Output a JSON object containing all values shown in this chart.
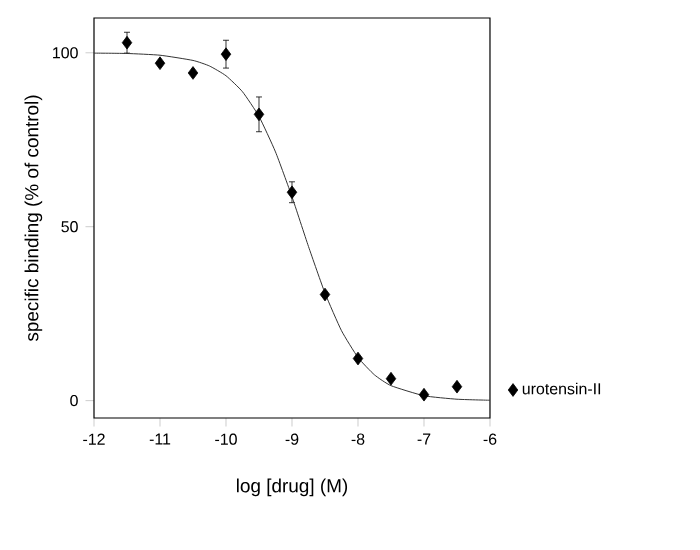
{
  "chart_data": {
    "type": "scatter",
    "xlabel": "log [drug] (M)",
    "ylabel": "specific binding (% of control)",
    "xlim": [
      -12,
      -6
    ],
    "ylim": [
      -5,
      110
    ],
    "xticks": [
      -12,
      -11,
      -10,
      -9,
      -8,
      -7,
      -6
    ],
    "yticks": [
      0,
      50,
      100
    ],
    "grid": false,
    "legend": "bottom right",
    "series": [
      {
        "name": "urotensin-II",
        "marker": "diamond",
        "color": "#000000",
        "x": [
          -11.5,
          -11,
          -10.5,
          -10,
          -9.5,
          -9,
          -8.5,
          -8,
          -7.5,
          -7,
          -6.5
        ],
        "values": [
          102.9,
          97.0,
          94.2,
          99.6,
          82.3,
          59.9,
          30.5,
          12.1,
          6.3,
          1.7,
          4.0
        ],
        "errors": [
          3,
          null,
          null,
          4,
          5,
          3,
          null,
          null,
          null,
          null,
          null
        ]
      },
      {
        "type": "line",
        "marker": "none",
        "color": "#333333",
        "x": [
          -12,
          -11.5,
          -11,
          -10.5,
          -10.25,
          -10,
          -9.75,
          -9.5,
          -9.25,
          -9,
          -8.75,
          -8.5,
          -8.25,
          -8,
          -7.75,
          -7.5,
          -7,
          -6.5,
          -6
        ],
        "values": [
          99.9,
          99.8,
          99.3,
          97.8,
          96.2,
          93.4,
          88.8,
          81.7,
          71.5,
          58.6,
          44.3,
          30.9,
          20.1,
          12.4,
          7.4,
          4.3,
          1.4,
          0.4,
          0.1
        ]
      }
    ]
  }
}
